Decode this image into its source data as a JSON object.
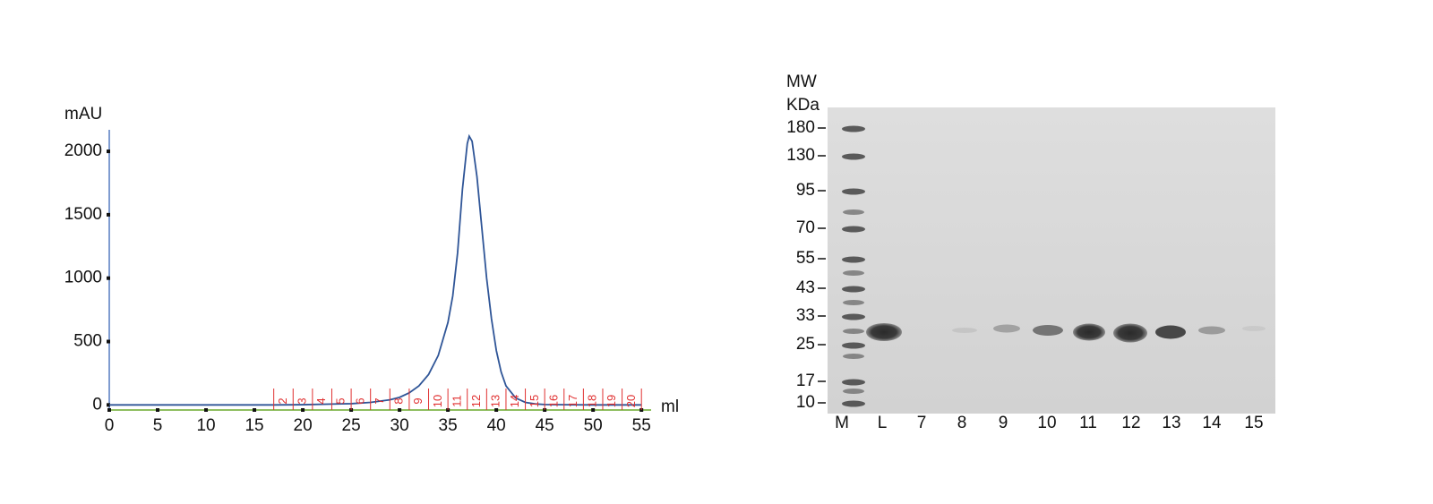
{
  "chart_data": {
    "type": "line",
    "y_label": "mAU",
    "x_label": "ml",
    "x": [
      0,
      5,
      10,
      15,
      17,
      20,
      25,
      27,
      29,
      30,
      31,
      32,
      33,
      34,
      35,
      35.5,
      36,
      36.5,
      37,
      37.2,
      37.5,
      38,
      38.5,
      39,
      39.5,
      40,
      40.5,
      41,
      42,
      43,
      44,
      45,
      50,
      55
    ],
    "series": [
      {
        "color": "#2f5597",
        "values": [
          0,
          0,
          0,
          0,
          0,
          2,
          10,
          20,
          40,
          60,
          95,
          150,
          240,
          390,
          650,
          860,
          1200,
          1700,
          2060,
          2120,
          2080,
          1800,
          1400,
          1000,
          680,
          430,
          260,
          150,
          55,
          20,
          8,
          3,
          0,
          0
        ]
      }
    ],
    "xlim": [
      0,
      56
    ],
    "xticks": [
      0,
      5,
      10,
      15,
      20,
      25,
      30,
      35,
      40,
      45,
      50,
      55
    ],
    "ylim": [
      -40,
      2170
    ],
    "yticks": [
      0,
      500,
      1000,
      1500,
      2000
    ],
    "fraction_color": "#e03030",
    "fraction_edges": [
      17,
      19,
      21,
      23,
      25,
      27,
      29,
      31,
      33,
      35,
      37,
      39,
      41,
      43,
      45,
      47,
      49,
      51,
      53,
      55
    ],
    "fraction_labels": [
      "2",
      "3",
      "4",
      "5",
      "6",
      "7",
      "8",
      "9",
      "10",
      "11",
      "12",
      "13",
      "14",
      "15",
      "16",
      "17",
      "18",
      "19",
      "20"
    ]
  },
  "gel": {
    "mw_title": "MW",
    "mw_unit": "KDa",
    "mw_markers": [
      180,
      130,
      95,
      70,
      55,
      43,
      33,
      25,
      17,
      10
    ],
    "lanes": [
      "M",
      "L",
      "7",
      "8",
      "9",
      "10",
      "11",
      "12",
      "13",
      "14",
      "15"
    ]
  }
}
